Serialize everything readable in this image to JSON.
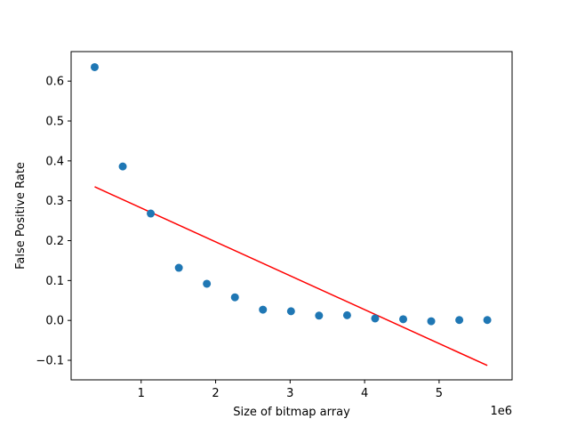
{
  "chart_data": {
    "type": "scatter",
    "xlabel": "Size of bitmap array",
    "ylabel": "False Positive Rate",
    "x_offset_label": "1e6",
    "xlim": [
      0.06,
      5.98
    ],
    "ylim": [
      -0.149,
      0.674
    ],
    "x_ticks": [
      1,
      2,
      3,
      4,
      5
    ],
    "y_ticks": [
      -0.1,
      0.0,
      0.1,
      0.2,
      0.3,
      0.4,
      0.5,
      0.6
    ],
    "x_tick_labels": [
      "1",
      "2",
      "3",
      "4",
      "5"
    ],
    "y_tick_labels": [
      "−0.1",
      "0.0",
      "0.1",
      "0.2",
      "0.3",
      "0.4",
      "0.5",
      "0.6"
    ],
    "grid": false,
    "series": [
      {
        "type": "scatter",
        "color": "#1f77b4",
        "x": [
          0.376,
          0.753,
          1.129,
          1.506,
          1.882,
          2.259,
          2.635,
          3.012,
          3.388,
          3.765,
          4.141,
          4.518,
          4.894,
          5.271,
          5.647
        ],
        "y": [
          0.635,
          0.386,
          0.268,
          0.132,
          0.092,
          0.058,
          0.027,
          0.023,
          0.012,
          0.013,
          0.005,
          0.003,
          -0.002,
          0.001,
          0.001
        ]
      },
      {
        "type": "line",
        "color": "#ff0000",
        "x": [
          0.376,
          5.647
        ],
        "y": [
          0.335,
          -0.113
        ]
      }
    ]
  }
}
